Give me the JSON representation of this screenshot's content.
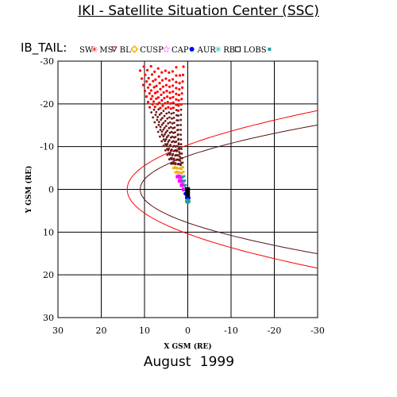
{
  "header": {
    "title": "IKI - Satellite Situation Center (SSC)"
  },
  "footer": {
    "date": "August   1999"
  },
  "chart_data": {
    "type": "scatter",
    "title": "IKI - Satellite Situation Center (SSC)",
    "xlabel": "X GSM (RE)",
    "ylabel": "Y GSM (RE)",
    "xlim": [
      30,
      -30
    ],
    "ylim": [
      30,
      -30
    ],
    "x_ticks": [
      "30",
      "20",
      "10",
      "0",
      "-10",
      "-20",
      "-30"
    ],
    "y_ticks": [
      "-30",
      "-20",
      "-10",
      "0",
      "10",
      "20",
      "30"
    ],
    "grid": true,
    "legend": {
      "prefix": "IB_TAIL:",
      "entries": [
        {
          "label": "SW",
          "marker": "star",
          "color": "#ff0000"
        },
        {
          "label": "MS",
          "marker": "triangle",
          "color": "#5a1515"
        },
        {
          "label": "BL",
          "marker": "diamond",
          "color": "#f0b000"
        },
        {
          "label": "CUSP",
          "marker": "star-outline",
          "color": "#ff00ff"
        },
        {
          "label": "CAP",
          "marker": "circle",
          "color": "#0000ff"
        },
        {
          "label": "AUR",
          "marker": "star",
          "color": "#00c8c8"
        },
        {
          "label": "RB",
          "marker": "square-outline",
          "color": "#000000"
        },
        {
          "label": "LOBS",
          "marker": "square",
          "color": "#20a0a0"
        }
      ]
    },
    "boundaries": [
      {
        "name": "Bow shock",
        "color": "#ff0000",
        "type": "parabola",
        "x0": 14.0,
        "yscale": 5.2
      },
      {
        "name": "Magnetopause",
        "color": "#5a1515",
        "type": "parabola",
        "x0": 11.0,
        "yscale": 3.9
      }
    ],
    "orbit_region": {
      "description": "Interball-Tail orbit segments, colour coded by region",
      "apogee_x_range": [
        1,
        11
      ],
      "apogee_y_range": [
        -29,
        -24
      ],
      "perigee": [
        0,
        3
      ]
    }
  }
}
